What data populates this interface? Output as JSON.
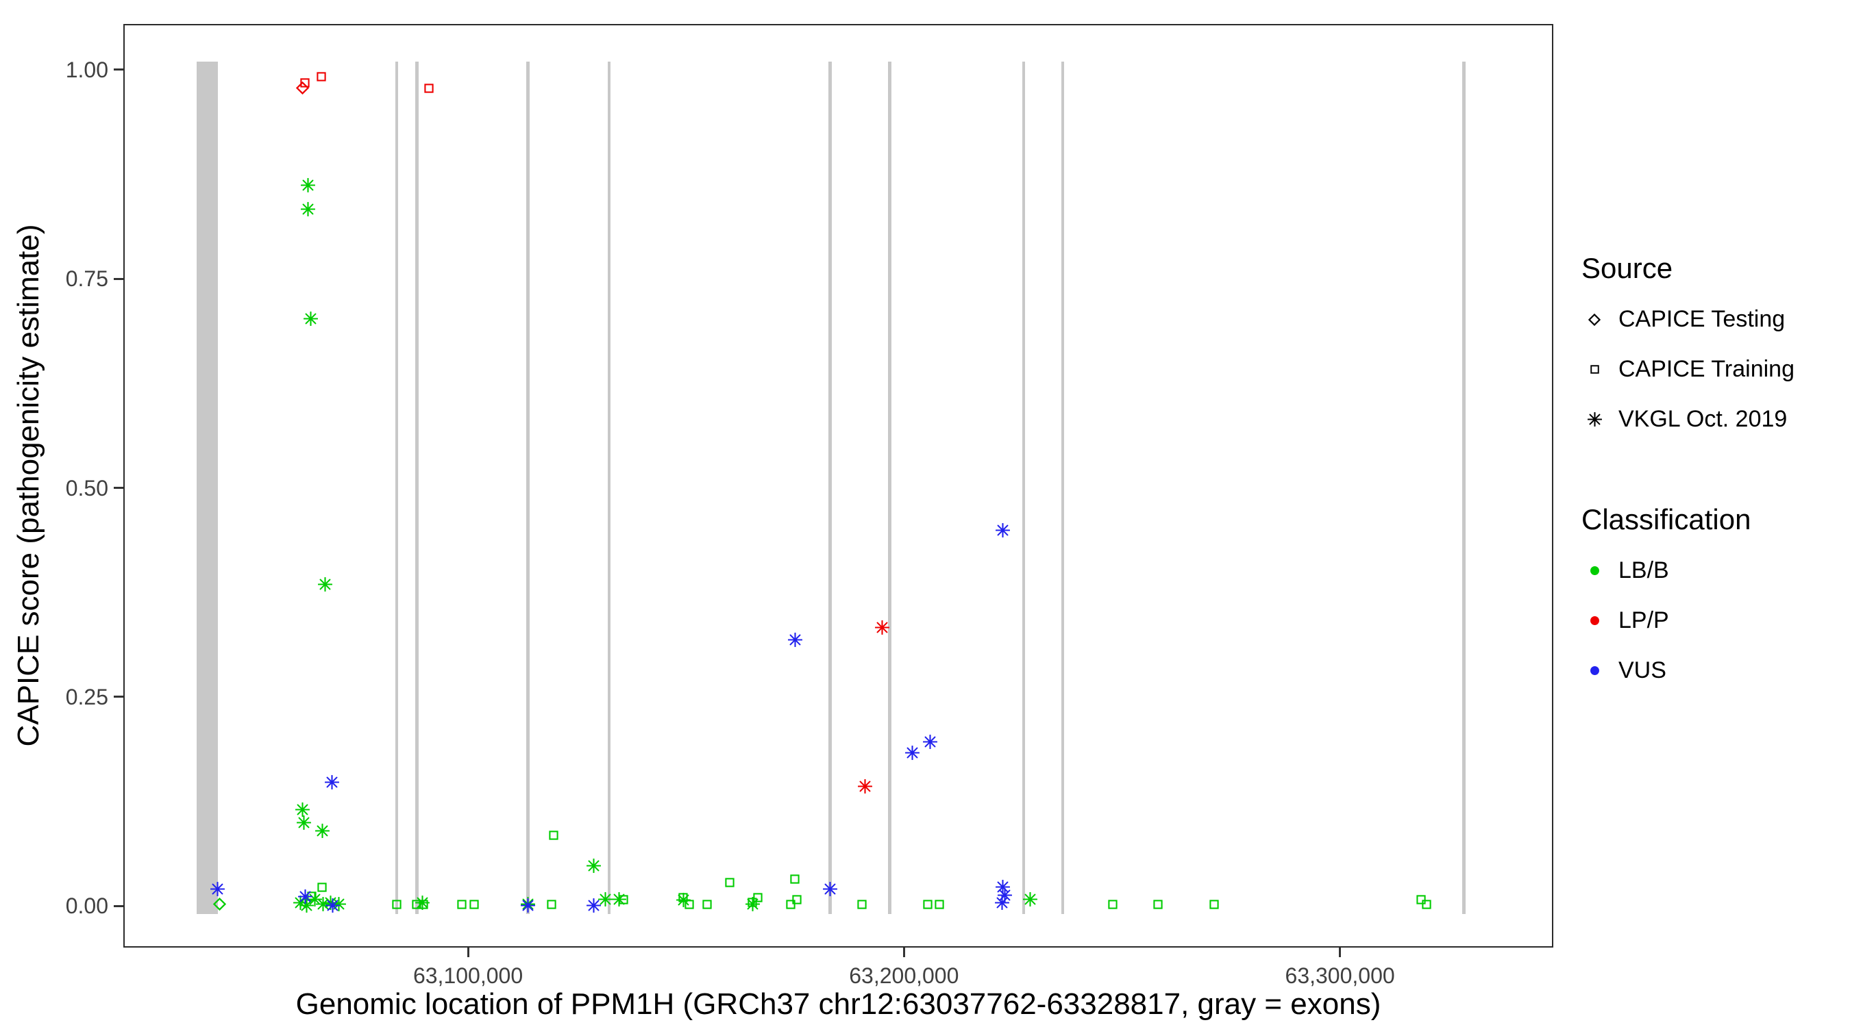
{
  "legend": {
    "source": {
      "title": "Source",
      "items": [
        {
          "shape": "diamond",
          "label": "CAPICE Testing"
        },
        {
          "shape": "square",
          "label": "CAPICE Training"
        },
        {
          "shape": "asterisk",
          "label": "VKGL Oct. 2019"
        }
      ]
    },
    "classification": {
      "title": "Classification",
      "items": [
        {
          "color": "#00CC00",
          "label": "LB/B"
        },
        {
          "color": "#EE0000",
          "label": "LP/P"
        },
        {
          "color": "#2222EE",
          "label": "VUS"
        }
      ]
    }
  },
  "chart_data": {
    "type": "scatter",
    "xlabel": "Genomic location of PPM1H (GRCh37 chr12:63037762-63328817, gray = exons)",
    "ylabel": "CAPICE score (pathogenicity estimate)",
    "xlim": [
      63021255,
      63348627
    ],
    "ylim": [
      -0.048,
      1.053
    ],
    "grid": "off",
    "legend_position": "right",
    "x_ticks": [
      {
        "v": 63100000,
        "label": "63,100,000"
      },
      {
        "v": 63200000,
        "label": "63,200,000"
      },
      {
        "v": 63300000,
        "label": "63,300,000"
      }
    ],
    "y_ticks": [
      {
        "v": 0.0,
        "label": "0.00"
      },
      {
        "v": 0.25,
        "label": "0.25"
      },
      {
        "v": 0.5,
        "label": "0.50"
      },
      {
        "v": 0.75,
        "label": "0.75"
      },
      {
        "v": 1.0,
        "label": "1.00"
      }
    ],
    "exon_color": "#c8c8c8",
    "exons": [
      {
        "start": 63037762,
        "end": 63042600
      },
      {
        "start": 63083300,
        "end": 63084000
      },
      {
        "start": 63087900,
        "end": 63088600
      },
      {
        "start": 63113400,
        "end": 63114100
      },
      {
        "start": 63132000,
        "end": 63132700
      },
      {
        "start": 63182700,
        "end": 63183400
      },
      {
        "start": 63196400,
        "end": 63197100
      },
      {
        "start": 63227100,
        "end": 63227800
      },
      {
        "start": 63236100,
        "end": 63236800
      },
      {
        "start": 63328000,
        "end": 63328817
      }
    ],
    "shape_by_source": {
      "CAPICE Testing": "diamond",
      "CAPICE Training": "square",
      "VKGL Oct. 2019": "asterisk"
    },
    "color_by_class": {
      "LB/B": "#00CC00",
      "LP/P": "#EE0000",
      "VUS": "#2222EE"
    },
    "points": [
      {
        "source": "CAPICE Testing",
        "cls": "LP/P",
        "pos": 63062000,
        "score": 0.978
      },
      {
        "source": "CAPICE Training",
        "cls": "LP/P",
        "pos": 63062600,
        "score": 0.984
      },
      {
        "source": "CAPICE Training",
        "cls": "LP/P",
        "pos": 63066400,
        "score": 0.992
      },
      {
        "source": "CAPICE Training",
        "cls": "LP/P",
        "pos": 63091000,
        "score": 0.978
      },
      {
        "source": "VKGL Oct. 2019",
        "cls": "LP/P",
        "pos": 63195000,
        "score": 0.333
      },
      {
        "source": "VKGL Oct. 2019",
        "cls": "LP/P",
        "pos": 63191000,
        "score": 0.143
      },
      {
        "source": "VKGL Oct. 2019",
        "cls": "LB/B",
        "pos": 63063300,
        "score": 0.862
      },
      {
        "source": "VKGL Oct. 2019",
        "cls": "LB/B",
        "pos": 63063300,
        "score": 0.833
      },
      {
        "source": "VKGL Oct. 2019",
        "cls": "LB/B",
        "pos": 63063900,
        "score": 0.702
      },
      {
        "source": "VKGL Oct. 2019",
        "cls": "LB/B",
        "pos": 63067200,
        "score": 0.385
      },
      {
        "source": "VKGL Oct. 2019",
        "cls": "LB/B",
        "pos": 63062000,
        "score": 0.115
      },
      {
        "source": "VKGL Oct. 2019",
        "cls": "LB/B",
        "pos": 63062400,
        "score": 0.1
      },
      {
        "source": "VKGL Oct. 2019",
        "cls": "LB/B",
        "pos": 63066600,
        "score": 0.09
      },
      {
        "source": "CAPICE Training",
        "cls": "LB/B",
        "pos": 63119700,
        "score": 0.085
      },
      {
        "source": "VKGL Oct. 2019",
        "cls": "LB/B",
        "pos": 63128800,
        "score": 0.048
      },
      {
        "source": "CAPICE Training",
        "cls": "LB/B",
        "pos": 63160000,
        "score": 0.028
      },
      {
        "source": "CAPICE Training",
        "cls": "LB/B",
        "pos": 63174900,
        "score": 0.032
      },
      {
        "source": "CAPICE Testing",
        "cls": "LB/B",
        "pos": 63043000,
        "score": 0.002
      },
      {
        "source": "CAPICE Training",
        "cls": "LB/B",
        "pos": 63066500,
        "score": 0.022
      },
      {
        "source": "CAPICE Training",
        "cls": "LB/B",
        "pos": 63064200,
        "score": 0.012
      },
      {
        "source": "CAPICE Training",
        "cls": "LB/B",
        "pos": 63083600,
        "score": 0.002
      },
      {
        "source": "CAPICE Training",
        "cls": "LB/B",
        "pos": 63088200,
        "score": 0.002
      },
      {
        "source": "CAPICE Training",
        "cls": "LB/B",
        "pos": 63089700,
        "score": 0.002
      },
      {
        "source": "CAPICE Training",
        "cls": "LB/B",
        "pos": 63098600,
        "score": 0.002
      },
      {
        "source": "CAPICE Training",
        "cls": "LB/B",
        "pos": 63101400,
        "score": 0.002
      },
      {
        "source": "CAPICE Training",
        "cls": "LB/B",
        "pos": 63119200,
        "score": 0.002
      },
      {
        "source": "CAPICE Training",
        "cls": "LB/B",
        "pos": 63135600,
        "score": 0.008
      },
      {
        "source": "CAPICE Training",
        "cls": "LB/B",
        "pos": 63149300,
        "score": 0.01
      },
      {
        "source": "CAPICE Training",
        "cls": "LB/B",
        "pos": 63150800,
        "score": 0.002
      },
      {
        "source": "CAPICE Training",
        "cls": "LB/B",
        "pos": 63154800,
        "score": 0.002
      },
      {
        "source": "CAPICE Training",
        "cls": "LB/B",
        "pos": 63165200,
        "score": 0.004
      },
      {
        "source": "CAPICE Training",
        "cls": "LB/B",
        "pos": 63166400,
        "score": 0.01
      },
      {
        "source": "CAPICE Training",
        "cls": "LB/B",
        "pos": 63174000,
        "score": 0.002
      },
      {
        "source": "CAPICE Training",
        "cls": "LB/B",
        "pos": 63175400,
        "score": 0.008
      },
      {
        "source": "CAPICE Training",
        "cls": "LB/B",
        "pos": 63190400,
        "score": 0.002
      },
      {
        "source": "CAPICE Training",
        "cls": "LB/B",
        "pos": 63205500,
        "score": 0.002
      },
      {
        "source": "CAPICE Training",
        "cls": "LB/B",
        "pos": 63208200,
        "score": 0.002
      },
      {
        "source": "CAPICE Training",
        "cls": "LB/B",
        "pos": 63247900,
        "score": 0.002
      },
      {
        "source": "CAPICE Training",
        "cls": "LB/B",
        "pos": 63258300,
        "score": 0.002
      },
      {
        "source": "CAPICE Training",
        "cls": "LB/B",
        "pos": 63271200,
        "score": 0.002
      },
      {
        "source": "CAPICE Training",
        "cls": "LB/B",
        "pos": 63318600,
        "score": 0.008
      },
      {
        "source": "CAPICE Training",
        "cls": "LB/B",
        "pos": 63319800,
        "score": 0.002
      },
      {
        "source": "VKGL Oct. 2019",
        "cls": "LB/B",
        "pos": 63061600,
        "score": 0.004
      },
      {
        "source": "VKGL Oct. 2019",
        "cls": "LB/B",
        "pos": 63063000,
        "score": 0.001
      },
      {
        "source": "VKGL Oct. 2019",
        "cls": "LB/B",
        "pos": 63064900,
        "score": 0.008
      },
      {
        "source": "VKGL Oct. 2019",
        "cls": "LB/B",
        "pos": 63066700,
        "score": 0.002
      },
      {
        "source": "VKGL Oct. 2019",
        "cls": "LB/B",
        "pos": 63068500,
        "score": 0.004
      },
      {
        "source": "VKGL Oct. 2019",
        "cls": "LB/B",
        "pos": 63070400,
        "score": 0.002
      },
      {
        "source": "VKGL Oct. 2019",
        "cls": "LB/B",
        "pos": 63089600,
        "score": 0.004
      },
      {
        "source": "VKGL Oct. 2019",
        "cls": "LB/B",
        "pos": 63113700,
        "score": 0.002
      },
      {
        "source": "VKGL Oct. 2019",
        "cls": "LB/B",
        "pos": 63131500,
        "score": 0.008
      },
      {
        "source": "VKGL Oct. 2019",
        "cls": "LB/B",
        "pos": 63134600,
        "score": 0.008
      },
      {
        "source": "VKGL Oct. 2019",
        "cls": "LB/B",
        "pos": 63149400,
        "score": 0.007
      },
      {
        "source": "VKGL Oct. 2019",
        "cls": "LB/B",
        "pos": 63165300,
        "score": 0.002
      },
      {
        "source": "VKGL Oct. 2019",
        "cls": "LB/B",
        "pos": 63228900,
        "score": 0.008
      },
      {
        "source": "VKGL Oct. 2019",
        "cls": "VUS",
        "pos": 63042500,
        "score": 0.02
      },
      {
        "source": "VKGL Oct. 2019",
        "cls": "VUS",
        "pos": 63062700,
        "score": 0.011
      },
      {
        "source": "VKGL Oct. 2019",
        "cls": "VUS",
        "pos": 63069000,
        "score": 0.001
      },
      {
        "source": "VKGL Oct. 2019",
        "cls": "VUS",
        "pos": 63068800,
        "score": 0.148
      },
      {
        "source": "VKGL Oct. 2019",
        "cls": "VUS",
        "pos": 63113700,
        "score": 0.001
      },
      {
        "source": "VKGL Oct. 2019",
        "cls": "VUS",
        "pos": 63128800,
        "score": 0.001
      },
      {
        "source": "VKGL Oct. 2019",
        "cls": "VUS",
        "pos": 63183000,
        "score": 0.02
      },
      {
        "source": "VKGL Oct. 2019",
        "cls": "VUS",
        "pos": 63175100,
        "score": 0.318
      },
      {
        "source": "VKGL Oct. 2019",
        "cls": "VUS",
        "pos": 63201900,
        "score": 0.183
      },
      {
        "source": "VKGL Oct. 2019",
        "cls": "VUS",
        "pos": 63206000,
        "score": 0.196
      },
      {
        "source": "VKGL Oct. 2019",
        "cls": "VUS",
        "pos": 63222700,
        "score": 0.449
      },
      {
        "source": "VKGL Oct. 2019",
        "cls": "VUS",
        "pos": 63222700,
        "score": 0.023
      },
      {
        "source": "VKGL Oct. 2019",
        "cls": "VUS",
        "pos": 63223100,
        "score": 0.013
      },
      {
        "source": "VKGL Oct. 2019",
        "cls": "VUS",
        "pos": 63222500,
        "score": 0.004
      }
    ]
  }
}
